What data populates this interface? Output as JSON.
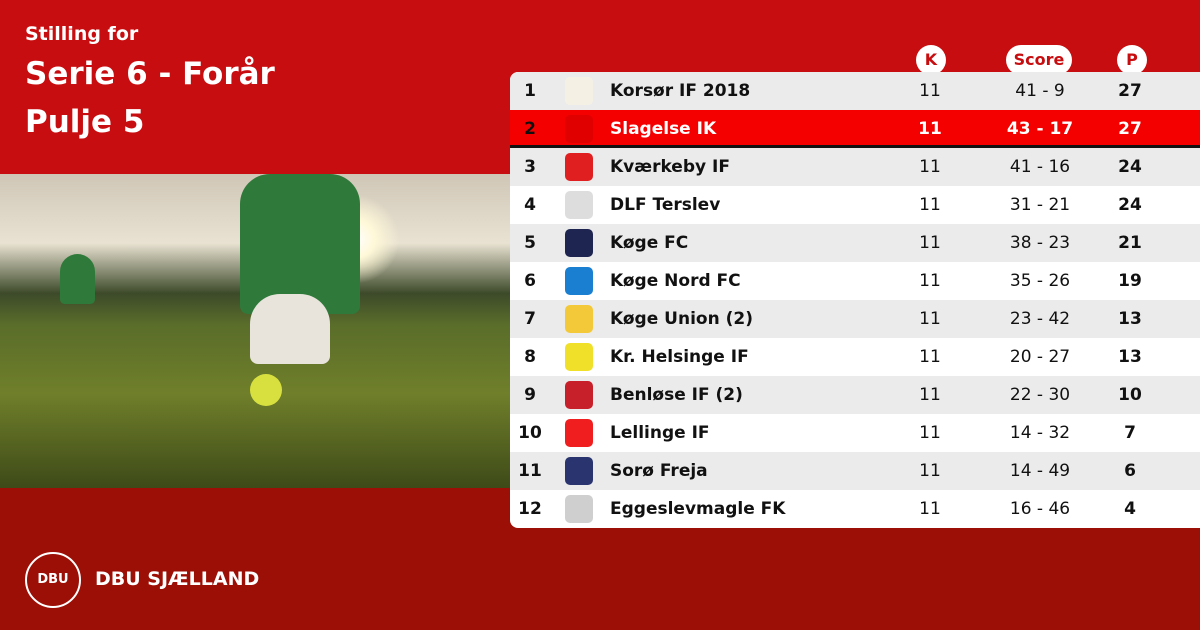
{
  "header": {
    "line1": "Stilling for",
    "line2": "Serie 6 - Forår",
    "line3": "Pulje 5"
  },
  "columns": {
    "k": "K",
    "score": "Score",
    "p": "P"
  },
  "rows": [
    {
      "pos": "1",
      "team": "Korsør IF 2018",
      "k": "11",
      "score": "41 - 9",
      "p": "27",
      "logo_color": "#f4f1e4"
    },
    {
      "pos": "2",
      "team": "Slagelse IK",
      "k": "11",
      "score": "43 - 17",
      "p": "27",
      "logo_color": "#e10000",
      "highlight": true
    },
    {
      "pos": "3",
      "team": "Kværkeby IF",
      "k": "11",
      "score": "41 - 16",
      "p": "24",
      "logo_color": "#e02020"
    },
    {
      "pos": "4",
      "team": "DLF Terslev",
      "k": "11",
      "score": "31 - 21",
      "p": "24",
      "logo_color": "#dddddd"
    },
    {
      "pos": "5",
      "team": "Køge FC",
      "k": "11",
      "score": "38 - 23",
      "p": "21",
      "logo_color": "#1e2550"
    },
    {
      "pos": "6",
      "team": "Køge Nord FC",
      "k": "11",
      "score": "35 - 26",
      "p": "19",
      "logo_color": "#1a7fd0"
    },
    {
      "pos": "7",
      "team": "Køge Union (2)",
      "k": "11",
      "score": "23 - 42",
      "p": "13",
      "logo_color": "#f3c93a"
    },
    {
      "pos": "8",
      "team": "Kr. Helsinge IF",
      "k": "11",
      "score": "20 - 27",
      "p": "13",
      "logo_color": "#f0e02a"
    },
    {
      "pos": "9",
      "team": "Benløse IF (2)",
      "k": "11",
      "score": "22 - 30",
      "p": "10",
      "logo_color": "#c8202a"
    },
    {
      "pos": "10",
      "team": "Lellinge IF",
      "k": "11",
      "score": "14 - 32",
      "p": "7",
      "logo_color": "#f01e1e"
    },
    {
      "pos": "11",
      "team": "Sorø Freja",
      "k": "11",
      "score": "14 - 49",
      "p": "6",
      "logo_color": "#2a3570"
    },
    {
      "pos": "12",
      "team": "Eggeslevmagle FK",
      "k": "11",
      "score": "16 - 46",
      "p": "4",
      "logo_color": "#cfcfcf"
    }
  ],
  "footer": {
    "brand": "DBU SJÆLLAND",
    "logo_text": "DBU"
  },
  "colors": {
    "top": "#c70d0f",
    "bottom": "#9c0f07",
    "highlight": "#f50000"
  }
}
